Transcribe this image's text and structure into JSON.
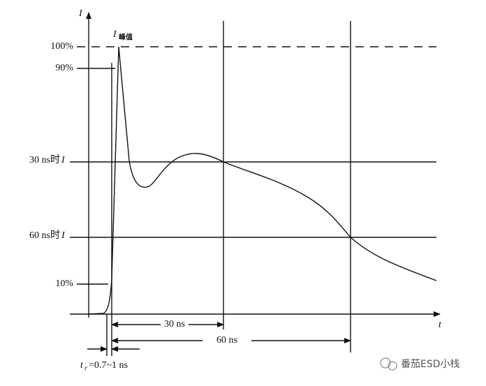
{
  "axes": {
    "y_label": "I",
    "x_label": "t"
  },
  "peak_label": {
    "symbol": "I",
    "sub": "峰值"
  },
  "levels": [
    {
      "text": "100%"
    },
    {
      "text": "90%"
    },
    {
      "text": "30 ns时",
      "var": "I"
    },
    {
      "text": "60 ns时",
      "var": "I"
    },
    {
      "text": "10%"
    }
  ],
  "intervals": [
    "30 ns",
    "60 ns"
  ],
  "rise_time": {
    "symbol": "t",
    "sub": "r",
    "text": "=0.7~1 ns"
  },
  "watermark": "番茄ESD小栈"
}
